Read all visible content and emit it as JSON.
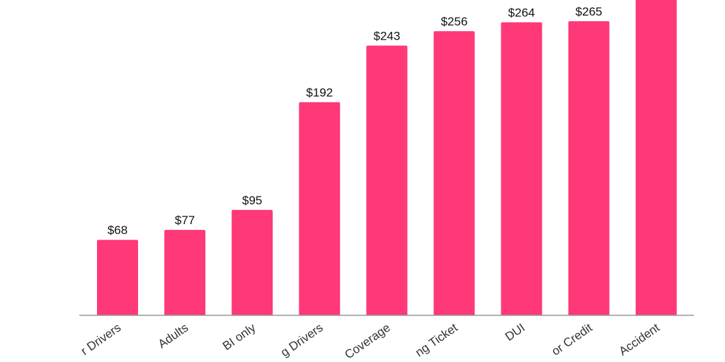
{
  "chart_data": {
    "type": "bar",
    "categories": [
      "r Drivers",
      "Adults",
      "BI only",
      "g Drivers",
      "Coverage",
      "ng Ticket",
      "DUI",
      "or Credit",
      "Accident"
    ],
    "values": [
      68,
      77,
      95,
      192,
      243,
      256,
      264,
      265,
      300
    ],
    "data_labels": [
      "$68",
      "$77",
      "$95",
      "$192",
      "$243",
      "$256",
      "$264",
      "$265",
      ""
    ],
    "ylim": [
      0,
      300
    ],
    "grid": false,
    "legend": "none",
    "bar_color": "#ff3877",
    "axis_color": "#999999"
  }
}
